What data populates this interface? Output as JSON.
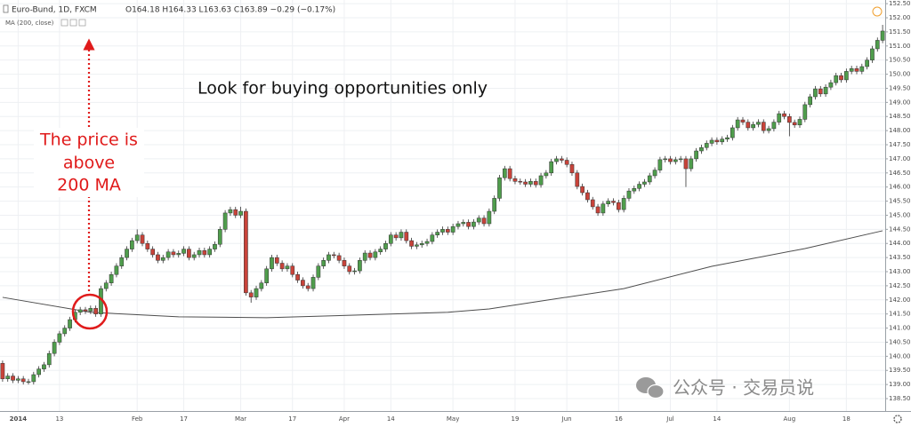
{
  "header": {
    "symbol": "Euro-Bund, 1D, FXCM",
    "quote": "O164.18 H164.33 L163.63 C163.89 −0.29 (−0.17%)",
    "indicator": "MA (200, close)"
  },
  "watermark": "公众号 · 交易员说",
  "chart_data": {
    "type": "candlestick",
    "title": "Look for buying opportunities only",
    "annotation_lines": [
      "The price is",
      "above",
      "200 MA"
    ],
    "up_color": "#4f9d4c",
    "down_color": "#c8433a",
    "grid": true,
    "ylim": [
      138.06,
      152.63
    ],
    "yticks": [
      {
        "value": 138.5,
        "label": "138.50"
      },
      {
        "value": 139,
        "label": "139.00"
      },
      {
        "value": 139.5,
        "label": "139.50"
      },
      {
        "value": 140,
        "label": "140.00"
      },
      {
        "value": 140.5,
        "label": "140.50"
      },
      {
        "value": 141,
        "label": "141.00"
      },
      {
        "value": 141.5,
        "label": "141.50"
      },
      {
        "value": 142,
        "label": "142.00"
      },
      {
        "value": 142.5,
        "label": "142.50"
      },
      {
        "value": 143,
        "label": "143.00"
      },
      {
        "value": 143.5,
        "label": "143.50"
      },
      {
        "value": 144,
        "label": "144.00"
      },
      {
        "value": 144.5,
        "label": "144.50"
      },
      {
        "value": 145,
        "label": "145.00"
      },
      {
        "value": 145.5,
        "label": "145.50"
      },
      {
        "value": 146,
        "label": "146.00"
      },
      {
        "value": 146.5,
        "label": "146.50"
      },
      {
        "value": 147,
        "label": "147.00"
      },
      {
        "value": 147.5,
        "label": "147.50"
      },
      {
        "value": 148,
        "label": "148.00"
      },
      {
        "value": 148.5,
        "label": "148.50"
      },
      {
        "value": 149,
        "label": "149.00"
      },
      {
        "value": 149.5,
        "label": "149.50"
      },
      {
        "value": 150,
        "label": "150.00"
      },
      {
        "value": 150.5,
        "label": "150.50"
      },
      {
        "value": 151,
        "label": "151.00"
      },
      {
        "value": 151.5,
        "label": "151.50"
      },
      {
        "value": 152,
        "label": "152.00"
      },
      {
        "value": 152.5,
        "label": "152.50"
      }
    ],
    "categories": [
      null,
      null,
      null,
      "2014",
      null,
      null,
      null,
      null,
      null,
      null,
      null,
      "13",
      null,
      null,
      null,
      null,
      null,
      null,
      null,
      null,
      null,
      null,
      null,
      null,
      null,
      null,
      "Feb",
      null,
      null,
      null,
      null,
      null,
      null,
      null,
      null,
      "17",
      null,
      null,
      null,
      null,
      null,
      null,
      null,
      null,
      null,
      null,
      "Mar",
      null,
      null,
      null,
      null,
      null,
      null,
      null,
      null,
      null,
      "17",
      null,
      null,
      null,
      null,
      null,
      null,
      null,
      null,
      null,
      "Apr",
      null,
      null,
      null,
      null,
      null,
      null,
      null,
      null,
      "14",
      null,
      null,
      null,
      null,
      null,
      null,
      null,
      null,
      null,
      null,
      null,
      "May",
      null,
      null,
      null,
      null,
      null,
      null,
      null,
      null,
      null,
      null,
      null,
      "19",
      null,
      null,
      null,
      null,
      null,
      null,
      null,
      null,
      null,
      "Jun",
      null,
      null,
      null,
      null,
      null,
      null,
      null,
      null,
      null,
      "16",
      null,
      null,
      null,
      null,
      null,
      null,
      null,
      null,
      null,
      "Jul",
      null,
      null,
      null,
      null,
      null,
      null,
      null,
      null,
      "14",
      null,
      null,
      null,
      null,
      null,
      null,
      null,
      null,
      null,
      null,
      null,
      null,
      null,
      "Aug",
      null,
      null,
      null,
      null,
      null,
      null,
      null,
      null,
      null,
      null,
      "18",
      null,
      null,
      null,
      null,
      null,
      null,
      null
    ],
    "ohlc": [
      [
        139.75,
        139.85,
        139.1,
        139.2
      ],
      [
        139.2,
        139.4,
        139.1,
        139.3
      ],
      [
        139.3,
        139.4,
        139.05,
        139.15
      ],
      [
        139.15,
        139.3,
        139.05,
        139.2
      ],
      [
        139.2,
        139.3,
        139.0,
        139.1
      ],
      [
        139.1,
        139.2,
        139.0,
        139.1
      ],
      [
        139.1,
        139.45,
        139.0,
        139.35
      ],
      [
        139.35,
        139.65,
        139.25,
        139.55
      ],
      [
        139.55,
        139.8,
        139.45,
        139.7
      ],
      [
        139.7,
        140.2,
        139.6,
        140.1
      ],
      [
        140.1,
        140.6,
        140.0,
        140.5
      ],
      [
        140.5,
        140.9,
        140.4,
        140.8
      ],
      [
        140.8,
        141.1,
        140.7,
        141.0
      ],
      [
        141.0,
        141.4,
        140.9,
        141.3
      ],
      [
        141.3,
        141.66,
        141.2,
        141.56
      ],
      [
        141.56,
        141.75,
        141.46,
        141.65
      ],
      [
        141.65,
        141.75,
        141.5,
        141.6
      ],
      [
        141.6,
        141.8,
        141.5,
        141.7
      ],
      [
        141.7,
        141.8,
        141.4,
        141.5
      ],
      [
        141.5,
        142.5,
        141.4,
        142.4
      ],
      [
        142.4,
        142.7,
        142.3,
        142.6
      ],
      [
        142.6,
        143.0,
        142.5,
        142.9
      ],
      [
        142.9,
        143.3,
        142.8,
        143.2
      ],
      [
        143.2,
        143.6,
        143.1,
        143.5
      ],
      [
        143.5,
        143.9,
        143.4,
        143.8
      ],
      [
        143.8,
        144.2,
        143.7,
        144.1
      ],
      [
        144.1,
        144.5,
        144.0,
        144.3
      ],
      [
        144.3,
        144.4,
        143.9,
        144.0
      ],
      [
        144.0,
        144.1,
        143.7,
        143.8
      ],
      [
        143.8,
        143.9,
        143.5,
        143.6
      ],
      [
        143.6,
        143.7,
        143.3,
        143.4
      ],
      [
        143.4,
        143.6,
        143.3,
        143.5
      ],
      [
        143.5,
        143.8,
        143.4,
        143.7
      ],
      [
        143.7,
        143.8,
        143.5,
        143.6
      ],
      [
        143.6,
        143.75,
        143.5,
        143.65
      ],
      [
        143.65,
        143.9,
        143.55,
        143.8
      ],
      [
        143.8,
        143.9,
        143.4,
        143.5
      ],
      [
        143.5,
        143.7,
        143.4,
        143.6
      ],
      [
        143.6,
        143.85,
        143.5,
        143.75
      ],
      [
        143.75,
        143.85,
        143.5,
        143.6
      ],
      [
        143.6,
        143.9,
        143.5,
        143.8
      ],
      [
        143.8,
        144.07,
        143.7,
        143.97
      ],
      [
        143.97,
        144.6,
        143.87,
        144.5
      ],
      [
        144.5,
        145.18,
        144.4,
        145.08
      ],
      [
        145.08,
        145.3,
        144.98,
        145.2
      ],
      [
        145.2,
        145.3,
        144.9,
        145.0
      ],
      [
        145.0,
        145.3,
        144.9,
        145.14
      ],
      [
        145.14,
        145.24,
        142.15,
        142.25
      ],
      [
        142.25,
        142.35,
        141.9,
        142.1
      ],
      [
        142.1,
        142.5,
        142.0,
        142.4
      ],
      [
        142.4,
        142.7,
        142.3,
        142.6
      ],
      [
        142.6,
        143.2,
        142.5,
        143.1
      ],
      [
        143.1,
        143.6,
        143.0,
        143.5
      ],
      [
        143.5,
        143.6,
        143.2,
        143.3
      ],
      [
        143.3,
        143.4,
        143.0,
        143.1
      ],
      [
        143.1,
        143.3,
        143.0,
        143.2
      ],
      [
        143.2,
        143.3,
        142.8,
        142.9
      ],
      [
        142.9,
        143.0,
        142.6,
        142.7
      ],
      [
        142.7,
        142.8,
        142.4,
        142.5
      ],
      [
        142.5,
        142.6,
        142.3,
        142.4
      ],
      [
        142.4,
        142.9,
        142.3,
        142.8
      ],
      [
        142.8,
        143.3,
        142.7,
        143.2
      ],
      [
        143.2,
        143.5,
        143.1,
        143.4
      ],
      [
        143.4,
        143.7,
        143.3,
        143.6
      ],
      [
        143.6,
        143.7,
        143.47,
        143.57
      ],
      [
        143.57,
        143.67,
        143.3,
        143.4
      ],
      [
        143.4,
        143.5,
        143.1,
        143.2
      ],
      [
        143.2,
        143.3,
        142.9,
        143.0
      ],
      [
        143.0,
        143.13,
        142.9,
        143.03
      ],
      [
        143.03,
        143.5,
        142.93,
        143.4
      ],
      [
        143.4,
        143.76,
        143.3,
        143.66
      ],
      [
        143.66,
        143.76,
        143.4,
        143.5
      ],
      [
        143.5,
        143.8,
        143.4,
        143.7
      ],
      [
        143.7,
        143.9,
        143.6,
        143.8
      ],
      [
        143.8,
        144.1,
        143.7,
        144.0
      ],
      [
        144.0,
        144.4,
        143.9,
        144.3
      ],
      [
        144.3,
        144.4,
        144.1,
        144.2
      ],
      [
        144.2,
        144.5,
        144.1,
        144.4
      ],
      [
        144.4,
        144.5,
        144.0,
        144.1
      ],
      [
        144.1,
        144.2,
        143.8,
        143.9
      ],
      [
        143.9,
        144.05,
        143.8,
        143.95
      ],
      [
        143.95,
        144.1,
        143.85,
        144.0
      ],
      [
        144.0,
        144.17,
        143.9,
        144.07
      ],
      [
        144.07,
        144.4,
        143.97,
        144.3
      ],
      [
        144.3,
        144.5,
        144.2,
        144.4
      ],
      [
        144.4,
        144.6,
        144.3,
        144.5
      ],
      [
        144.5,
        144.6,
        144.3,
        144.4
      ],
      [
        144.4,
        144.7,
        144.3,
        144.6
      ],
      [
        144.6,
        144.8,
        144.5,
        144.7
      ],
      [
        144.7,
        144.85,
        144.6,
        144.75
      ],
      [
        144.75,
        144.85,
        144.5,
        144.6
      ],
      [
        144.6,
        144.86,
        144.5,
        144.76
      ],
      [
        144.76,
        145.0,
        144.66,
        144.9
      ],
      [
        144.9,
        145.0,
        144.6,
        144.7
      ],
      [
        144.7,
        145.24,
        144.6,
        145.14
      ],
      [
        145.14,
        145.7,
        145.04,
        145.6
      ],
      [
        145.6,
        146.43,
        145.5,
        146.33
      ],
      [
        146.33,
        146.75,
        146.23,
        146.65
      ],
      [
        146.65,
        146.75,
        146.2,
        146.3
      ],
      [
        146.3,
        146.4,
        146.1,
        146.2
      ],
      [
        146.2,
        146.3,
        146.08,
        146.18
      ],
      [
        146.18,
        146.28,
        146.0,
        146.1
      ],
      [
        146.1,
        146.3,
        146.0,
        146.2
      ],
      [
        146.2,
        146.3,
        145.98,
        146.08
      ],
      [
        146.08,
        146.5,
        145.98,
        146.4
      ],
      [
        146.4,
        146.6,
        146.3,
        146.5
      ],
      [
        146.5,
        147.0,
        146.4,
        146.9
      ],
      [
        146.9,
        147.1,
        146.8,
        147.0
      ],
      [
        147.0,
        147.1,
        146.85,
        146.95
      ],
      [
        146.95,
        147.05,
        146.7,
        146.8
      ],
      [
        146.8,
        146.9,
        146.4,
        146.5
      ],
      [
        146.5,
        146.6,
        145.92,
        146.02
      ],
      [
        146.02,
        146.12,
        145.7,
        145.8
      ],
      [
        145.8,
        145.9,
        145.45,
        145.55
      ],
      [
        145.55,
        145.65,
        145.2,
        145.3
      ],
      [
        145.3,
        145.4,
        144.98,
        145.08
      ],
      [
        145.08,
        145.5,
        144.98,
        145.4
      ],
      [
        145.4,
        145.6,
        145.3,
        145.5
      ],
      [
        145.5,
        145.6,
        145.35,
        145.45
      ],
      [
        145.45,
        145.55,
        145.1,
        145.2
      ],
      [
        145.2,
        145.7,
        145.1,
        145.6
      ],
      [
        145.6,
        145.96,
        145.5,
        145.86
      ],
      [
        145.86,
        146.05,
        145.76,
        145.95
      ],
      [
        145.95,
        146.2,
        145.85,
        146.1
      ],
      [
        146.1,
        146.28,
        146.0,
        146.18
      ],
      [
        146.18,
        146.5,
        146.08,
        146.4
      ],
      [
        146.4,
        146.7,
        146.3,
        146.6
      ],
      [
        146.6,
        147.07,
        146.5,
        146.97
      ],
      [
        146.97,
        147.1,
        146.87,
        147.0
      ],
      [
        147.0,
        147.1,
        146.8,
        146.9
      ],
      [
        146.9,
        147.07,
        146.8,
        146.97
      ],
      [
        146.97,
        147.1,
        146.87,
        147.0
      ],
      [
        147.0,
        147.1,
        146.0,
        146.65
      ],
      [
        146.65,
        147.1,
        146.55,
        147.0
      ],
      [
        147.0,
        147.38,
        146.9,
        147.28
      ],
      [
        147.28,
        147.5,
        147.18,
        147.4
      ],
      [
        147.4,
        147.65,
        147.3,
        147.55
      ],
      [
        147.55,
        147.76,
        147.45,
        147.66
      ],
      [
        147.66,
        147.76,
        147.5,
        147.6
      ],
      [
        147.6,
        147.8,
        147.5,
        147.7
      ],
      [
        147.7,
        147.85,
        147.6,
        147.75
      ],
      [
        147.75,
        148.2,
        147.65,
        148.1
      ],
      [
        148.1,
        148.48,
        148.0,
        148.38
      ],
      [
        148.38,
        148.48,
        148.2,
        148.3
      ],
      [
        148.3,
        148.4,
        148.0,
        148.1
      ],
      [
        148.1,
        148.32,
        148.0,
        148.22
      ],
      [
        148.22,
        148.4,
        148.12,
        148.3
      ],
      [
        148.3,
        148.4,
        147.9,
        148.0
      ],
      [
        148.0,
        148.17,
        147.9,
        148.07
      ],
      [
        148.07,
        148.4,
        147.97,
        148.3
      ],
      [
        148.3,
        148.7,
        148.2,
        148.6
      ],
      [
        148.6,
        148.7,
        148.4,
        148.5
      ],
      [
        148.5,
        148.6,
        147.8,
        148.29
      ],
      [
        148.29,
        148.39,
        148.1,
        148.2
      ],
      [
        148.2,
        148.5,
        148.1,
        148.4
      ],
      [
        148.4,
        149.02,
        148.3,
        148.92
      ],
      [
        148.92,
        149.3,
        148.82,
        149.2
      ],
      [
        149.2,
        149.58,
        149.1,
        149.48
      ],
      [
        149.48,
        149.58,
        149.2,
        149.3
      ],
      [
        149.3,
        149.64,
        149.2,
        149.54
      ],
      [
        149.54,
        149.8,
        149.44,
        149.7
      ],
      [
        149.7,
        150.05,
        149.6,
        149.95
      ],
      [
        149.95,
        150.05,
        149.7,
        149.8
      ],
      [
        149.8,
        150.2,
        149.7,
        150.1
      ],
      [
        150.1,
        150.3,
        150.0,
        150.2
      ],
      [
        150.2,
        150.3,
        150.0,
        150.1
      ],
      [
        150.1,
        150.37,
        150.0,
        150.27
      ],
      [
        150.27,
        150.6,
        150.17,
        150.5
      ],
      [
        150.5,
        151.0,
        150.4,
        150.9
      ],
      [
        150.9,
        151.3,
        150.8,
        151.2
      ],
      [
        151.2,
        151.75,
        151.1,
        151.53
      ]
    ],
    "ma": {
      "color": "#4d4d4d",
      "x": [
        0,
        17,
        34,
        51,
        68,
        86,
        94,
        103,
        120,
        137,
        155,
        170
      ],
      "values": [
        142.09,
        141.56,
        141.4,
        141.37,
        141.46,
        141.56,
        141.68,
        141.93,
        142.4,
        143.19,
        143.82,
        144.45
      ]
    }
  }
}
